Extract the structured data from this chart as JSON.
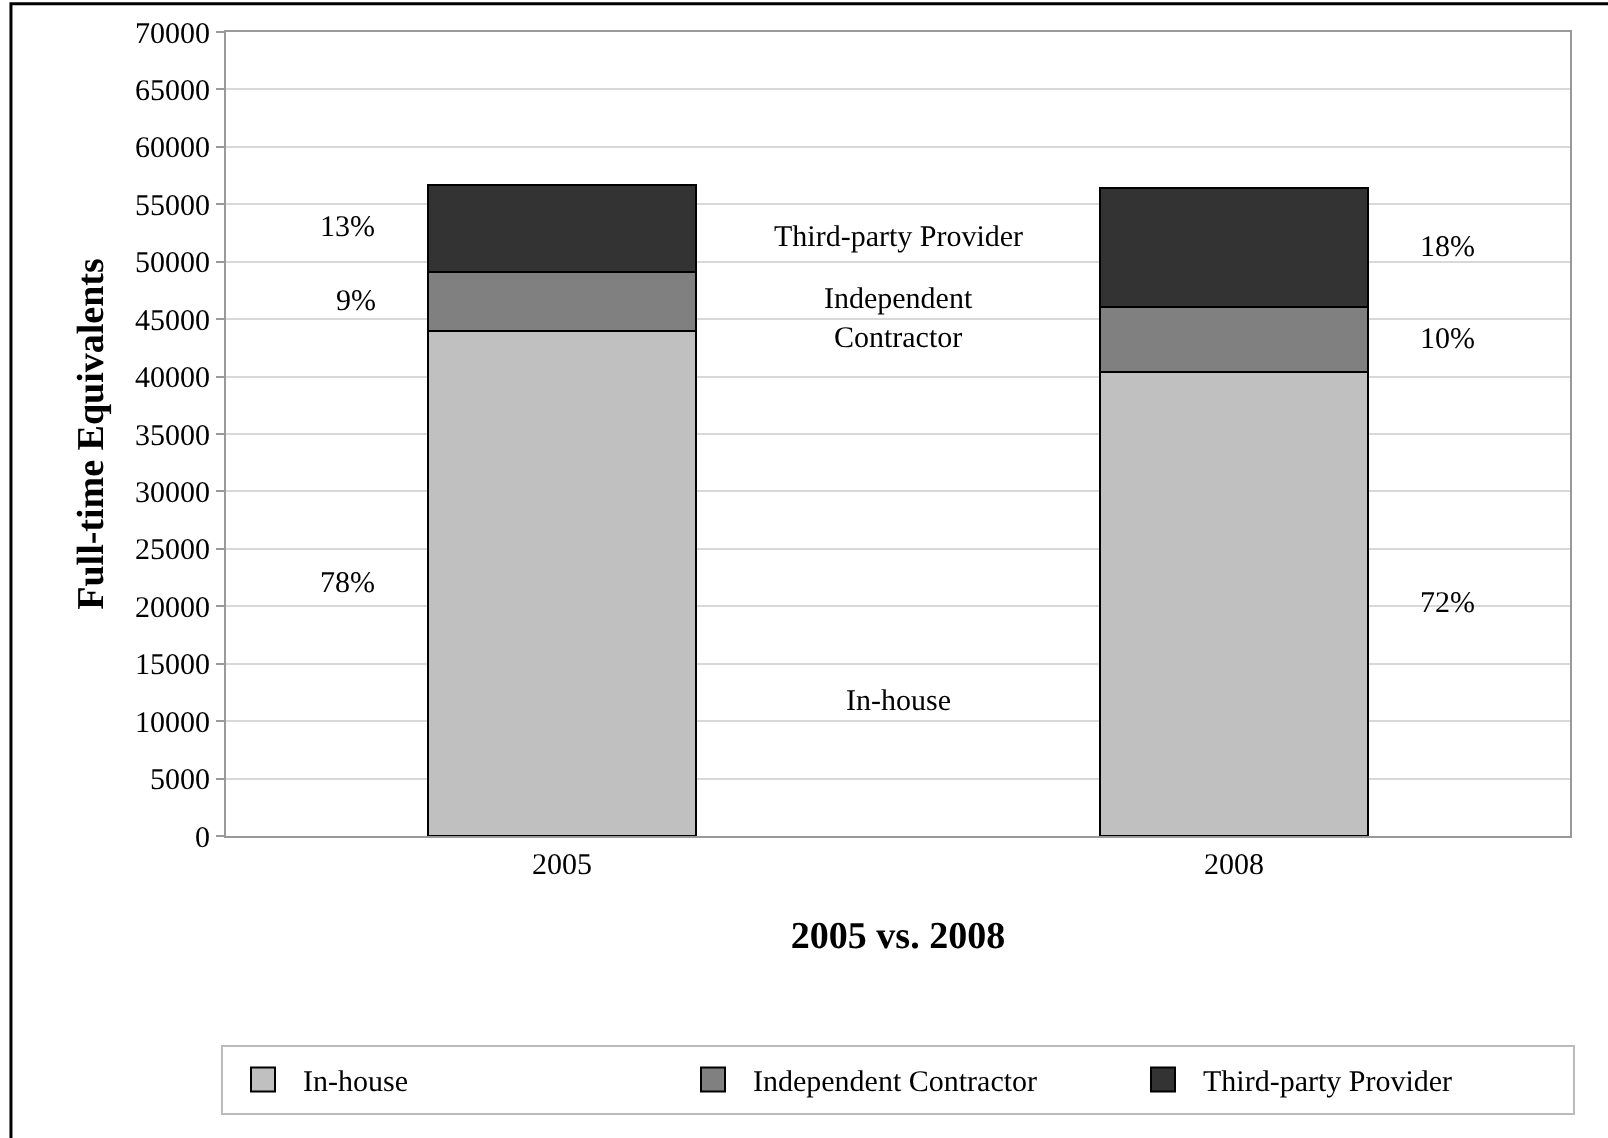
{
  "chart_data": {
    "type": "bar",
    "stacked": true,
    "xlabel": "2005 vs. 2008",
    "ylabel": "Full-time Equivalents",
    "categories": [
      "2005",
      "2008"
    ],
    "series": [
      {
        "name": "In-house",
        "color": "#c0c0c0",
        "values": [
          44000,
          40400
        ]
      },
      {
        "name": "Independent Contractor",
        "color": "#808080",
        "values": [
          5100,
          5700
        ]
      },
      {
        "name": "Third-party Provider",
        "color": "#333333",
        "values": [
          7600,
          10300
        ]
      }
    ],
    "annotations": [
      "78%",
      "9%",
      "13%",
      "72%",
      "10%",
      "18%"
    ],
    "ylim": [
      0,
      70000
    ],
    "yticks": [
      0,
      5000,
      10000,
      15000,
      20000,
      25000,
      30000,
      35000,
      40000,
      45000,
      50000,
      55000,
      60000,
      65000,
      70000
    ],
    "grid": "y",
    "legend": "bottom"
  }
}
